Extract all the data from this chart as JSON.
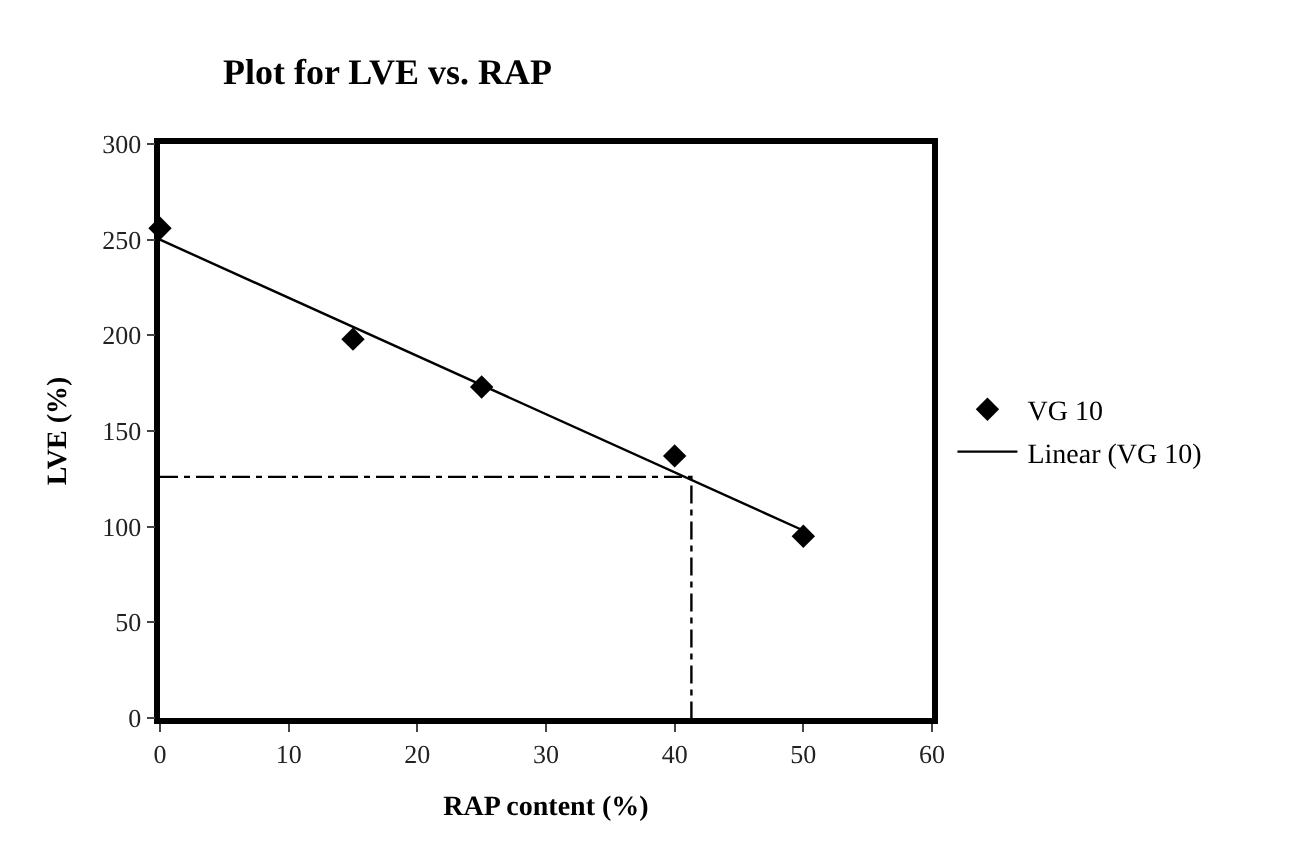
{
  "chart_data": {
    "type": "scatter",
    "title": "Plot for LVE vs. RAP",
    "xlabel": "RAP content (%)",
    "ylabel": "LVE (%)",
    "x": [
      0,
      15,
      25,
      40,
      50
    ],
    "series": [
      {
        "name": "VG 10",
        "color": "#000000",
        "marker": "diamond",
        "values": [
          256,
          198,
          173,
          137,
          95
        ]
      },
      {
        "name": "Linear (VG 10)",
        "type": "line",
        "color": "#000000",
        "marker": "none",
        "line_style": "solid",
        "x": [
          0,
          50
        ],
        "values": [
          250,
          98
        ]
      },
      {
        "type": "line",
        "color": "#000000",
        "marker": "none",
        "line_style": "dashed",
        "x": [
          0,
          41.3,
          41.3
        ],
        "values": [
          126,
          126,
          0
        ]
      }
    ],
    "xlim": [
      0,
      60
    ],
    "xticks": [
      0,
      10,
      20,
      30,
      40,
      50,
      60
    ],
    "ylim": [
      0,
      300
    ],
    "yticks": [
      0,
      50,
      100,
      150,
      200,
      250,
      300
    ],
    "legend": "right"
  }
}
